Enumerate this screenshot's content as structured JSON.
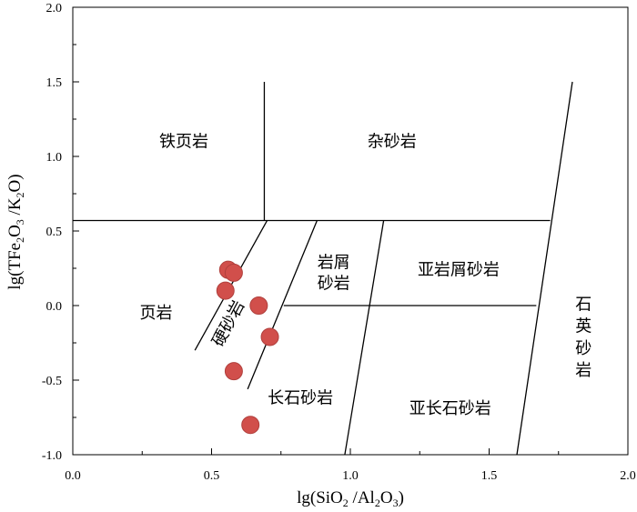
{
  "chart_data": {
    "type": "scatter",
    "xlim": [
      0.0,
      2.0
    ],
    "ylim": [
      -1.0,
      2.0
    ],
    "x_ticks": [
      {
        "v": 0.0,
        "label": "0.0"
      },
      {
        "v": 0.5,
        "label": "0.5"
      },
      {
        "v": 1.0,
        "label": "1.0"
      },
      {
        "v": 1.5,
        "label": "1.5"
      },
      {
        "v": 2.0,
        "label": "2.0"
      }
    ],
    "y_ticks": [
      {
        "v": 2.0,
        "label": "2.0"
      },
      {
        "v": 1.5,
        "label": "1.5"
      },
      {
        "v": 1.0,
        "label": "1.0"
      },
      {
        "v": 0.5,
        "label": "0.5"
      },
      {
        "v": 0.0,
        "label": "0.0"
      },
      {
        "v": -0.5,
        "label": "-0.5"
      },
      {
        "v": -1.0,
        "label": "-1.0"
      }
    ],
    "x_minor_ticks": [
      0.25,
      0.75,
      1.25,
      1.75
    ],
    "y_minor_ticks": [
      1.75,
      1.25,
      0.75,
      0.25,
      -0.25,
      -0.75
    ],
    "xlabel": {
      "pre": "lg(SiO",
      "s1": "2",
      "mid": " /Al",
      "s2": "2",
      "mid2": "O",
      "s3": "3",
      "post": ")"
    },
    "ylabel": {
      "pre": "lg(TFe",
      "s1": "2",
      "mid": "O",
      "s2": "3",
      "mid2": " /K",
      "s3": "2",
      "post": "O)"
    },
    "boundaries": [
      {
        "name": "boundary-upper-horizontal",
        "points": [
          [
            0.0,
            0.57
          ],
          [
            1.72,
            0.57
          ]
        ]
      },
      {
        "name": "boundary-upper-vertical",
        "points": [
          [
            0.69,
            0.57
          ],
          [
            0.69,
            1.5
          ]
        ]
      },
      {
        "name": "boundary-quartz-arenite",
        "points": [
          [
            1.6,
            -1.0
          ],
          [
            1.8,
            1.5
          ]
        ]
      },
      {
        "name": "boundary-lower-horizontal",
        "points": [
          [
            0.76,
            0.0
          ],
          [
            1.67,
            0.0
          ]
        ]
      },
      {
        "name": "boundary-greywacke-shale",
        "points": [
          [
            0.44,
            -0.3
          ],
          [
            0.7,
            0.57
          ]
        ]
      },
      {
        "name": "boundary-greywacke-arkose",
        "points": [
          [
            0.63,
            -0.56
          ],
          [
            0.88,
            0.57
          ]
        ]
      },
      {
        "name": "boundary-litharenite-subarkose",
        "points": [
          [
            0.98,
            -1.0
          ],
          [
            1.12,
            0.57
          ]
        ]
      }
    ],
    "fields": [
      {
        "name": "field-label-iron-shale",
        "label": "铁页岩",
        "x": 0.4,
        "y": 1.1
      },
      {
        "name": "field-label-wacke",
        "label": "杂砂岩",
        "x": 1.15,
        "y": 1.1
      },
      {
        "name": "field-label-lithic-1",
        "label": "岩屑",
        "x": 0.94,
        "y": 0.29
      },
      {
        "name": "field-label-lithic-2",
        "label": "砂岩",
        "x": 0.94,
        "y": 0.15
      },
      {
        "name": "field-label-sublitharenite",
        "label": "亚岩屑砂岩",
        "x": 1.39,
        "y": 0.24
      },
      {
        "name": "field-label-shale",
        "label": "页岩",
        "x": 0.3,
        "y": -0.05
      },
      {
        "name": "field-label-arkose",
        "label": "长石砂岩",
        "x": 0.82,
        "y": -0.62
      },
      {
        "name": "field-label-subarkose",
        "label": "亚长石砂岩",
        "x": 1.36,
        "y": -0.69
      }
    ],
    "rotated_label": {
      "name": "field-label-greywacke",
      "label": "硬砂岩",
      "x": 0.56,
      "y": -0.12,
      "angle": -62
    },
    "vertical_label": {
      "name": "field-label-quartz-arenite",
      "label": [
        "石",
        "英",
        "砂",
        "岩"
      ],
      "x": 1.84,
      "y_top": 0.01,
      "step": 0.148
    },
    "points_color": "#d14f4b",
    "points_stroke": "#b0403d",
    "points": [
      {
        "x": 0.56,
        "y": 0.24
      },
      {
        "x": 0.58,
        "y": 0.22
      },
      {
        "x": 0.55,
        "y": 0.1
      },
      {
        "x": 0.67,
        "y": 0.0
      },
      {
        "x": 0.71,
        "y": -0.21
      },
      {
        "x": 0.58,
        "y": -0.44
      },
      {
        "x": 0.64,
        "y": -0.8
      }
    ]
  }
}
